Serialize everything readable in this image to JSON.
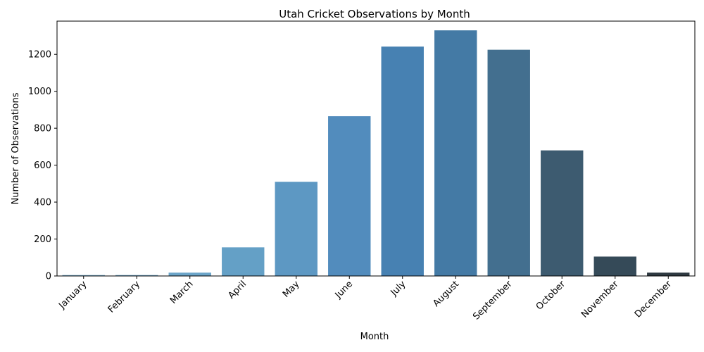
{
  "chart_data": {
    "type": "bar",
    "title": "Utah Cricket Observations by Month",
    "xlabel": "Month",
    "ylabel": "Number of Observations",
    "categories": [
      "January",
      "February",
      "March",
      "April",
      "May",
      "June",
      "July",
      "August",
      "September",
      "October",
      "November",
      "December"
    ],
    "values": [
      5,
      5,
      18,
      155,
      510,
      865,
      1242,
      1330,
      1225,
      680,
      105,
      18
    ],
    "ylim": [
      0,
      1380
    ],
    "yticks": [
      0,
      200,
      400,
      600,
      800,
      1000,
      1200
    ],
    "ytick_labels": [
      "0",
      "200",
      "400",
      "600",
      "800",
      "1000",
      "1200"
    ],
    "colors": [
      "#7aafcf",
      "#73aacd",
      "#6ca5c9",
      "#64a0c6",
      "#5d98c3",
      "#528cbd",
      "#4781b2",
      "#447aa5",
      "#436f8f",
      "#3d5b70",
      "#354a58",
      "#2f3a42"
    ],
    "grid": false,
    "legend": "none"
  }
}
